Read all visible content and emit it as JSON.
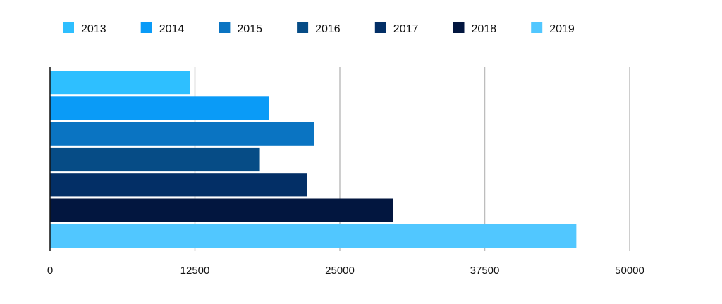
{
  "chart_data": {
    "type": "bar",
    "orientation": "horizontal",
    "title": "",
    "xlabel": "",
    "ylabel": "",
    "xlim": [
      0,
      50000
    ],
    "x_ticks": [
      "0",
      "12500",
      "25000",
      "37500",
      "50000"
    ],
    "grid": "vertical",
    "legend_position": "top",
    "series": [
      {
        "name": "2013",
        "value": 12100,
        "color": "#2EBFFF"
      },
      {
        "name": "2014",
        "value": 18900,
        "color": "#0A9BF7"
      },
      {
        "name": "2015",
        "value": 22800,
        "color": "#0A74C2"
      },
      {
        "name": "2016",
        "value": 18100,
        "color": "#064C86"
      },
      {
        "name": "2017",
        "value": 22200,
        "color": "#032F66"
      },
      {
        "name": "2018",
        "value": 29600,
        "color": "#02163F"
      },
      {
        "name": "2019",
        "value": 45400,
        "color": "#51C7FF"
      }
    ]
  }
}
